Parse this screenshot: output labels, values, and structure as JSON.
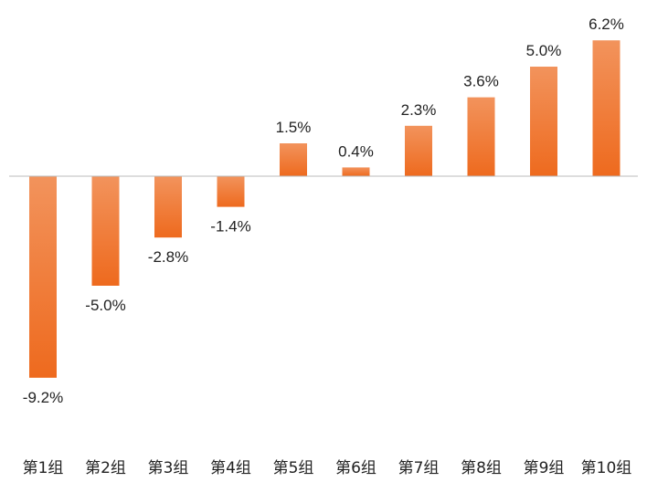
{
  "chart_data": {
    "type": "bar",
    "title": "",
    "xlabel": "",
    "ylabel": "",
    "categories": [
      "第1组",
      "第2组",
      "第3组",
      "第4组",
      "第5组",
      "第6组",
      "第7组",
      "第8组",
      "第9组",
      "第10组"
    ],
    "values": [
      -9.2,
      -5.0,
      -2.8,
      -1.4,
      1.5,
      0.4,
      2.3,
      3.6,
      5.0,
      6.2
    ],
    "data_labels": [
      "-9.2%",
      "-5.0%",
      "-2.8%",
      "-1.4%",
      "1.5%",
      "0.4%",
      "2.3%",
      "3.6%",
      "5.0%",
      "6.2%"
    ],
    "ylim": [
      -9.2,
      6.2
    ],
    "grid": false,
    "legend": "none",
    "colors": {
      "bar_top": "#F2935C",
      "bar_bottom": "#EE6A1E",
      "axis": "#BBBBBB",
      "text": "#222222"
    }
  }
}
